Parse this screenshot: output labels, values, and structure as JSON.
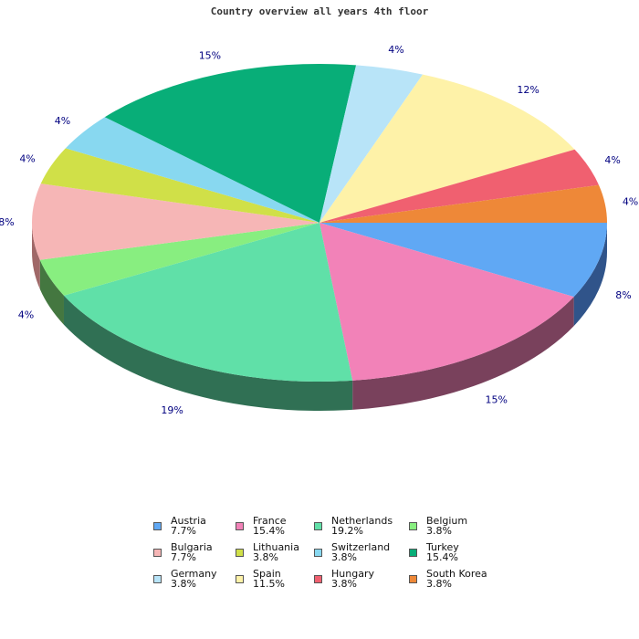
{
  "chart_data": {
    "type": "pie",
    "title": "Country overview all years 4th floor",
    "slices": [
      {
        "name": "Austria",
        "legend_value": "7.7%",
        "label": "8%",
        "value": 7.7,
        "color": "#60a8f4",
        "dark": "#30548a"
      },
      {
        "name": "France",
        "legend_value": "15.4%",
        "label": "15%",
        "value": 15.4,
        "color": "#f282b8",
        "dark": "#79415c"
      },
      {
        "name": "Netherlands",
        "legend_value": "19.2%",
        "label": "19%",
        "value": 19.2,
        "color": "#60e0a8",
        "dark": "#307054"
      },
      {
        "name": "Belgium",
        "legend_value": "3.8%",
        "label": "4%",
        "value": 3.8,
        "color": "#88ee80",
        "dark": "#447740"
      },
      {
        "name": "Bulgaria",
        "legend_value": "7.7%",
        "label": "8%",
        "value": 7.7,
        "color": "#f6b6b6",
        "dark": "#a06868"
      },
      {
        "name": "Lithuania",
        "legend_value": "3.8%",
        "label": "4%",
        "value": 3.8,
        "color": "#d0e048",
        "dark": "#7a8810"
      },
      {
        "name": "Switzerland",
        "legend_value": "3.8%",
        "label": "4%",
        "value": 3.8,
        "color": "#88d8f0",
        "dark": "#30809c"
      },
      {
        "name": "Turkey",
        "legend_value": "15.4%",
        "label": "15%",
        "value": 15.4,
        "color": "#08ae78",
        "dark": "#045028"
      },
      {
        "name": "Germany",
        "legend_value": "3.8%",
        "label": "4%",
        "value": 3.8,
        "color": "#b8e4f8",
        "dark": "#6090a8"
      },
      {
        "name": "Spain",
        "legend_value": "11.5%",
        "label": "12%",
        "value": 11.5,
        "color": "#fef2a8",
        "dark": "#a89a54"
      },
      {
        "name": "Hungary",
        "legend_value": "3.8%",
        "label": "4%",
        "value": 3.8,
        "color": "#f06070",
        "dark": "#9a0818"
      },
      {
        "name": "South Korea",
        "legend_value": "3.8%",
        "label": "4%",
        "value": 3.8,
        "color": "#ee8838",
        "dark": "#9a5018"
      }
    ]
  }
}
